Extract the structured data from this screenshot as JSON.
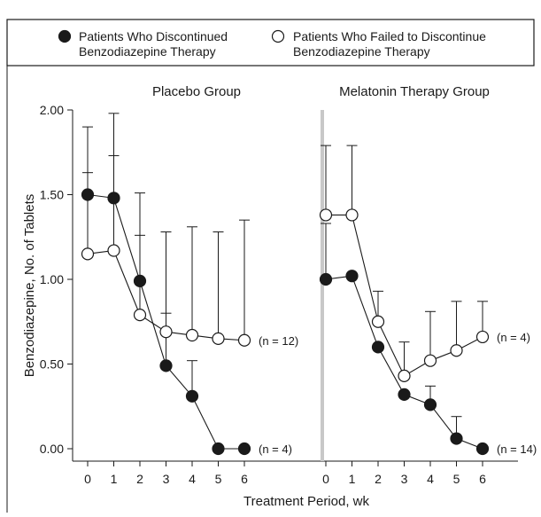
{
  "chart_data": {
    "type": "line",
    "legend": {
      "position": "top",
      "items": [
        {
          "label_line1": "Patients Who Discontinued",
          "label_line2": "Benzodiazepine Therapy",
          "marker": "filled-circle"
        },
        {
          "label_line1": "Patients Who Failed to Discontinue",
          "label_line2": "Benzodiazepine Therapy",
          "marker": "open-circle"
        }
      ]
    },
    "ylabel": "Benzodiazepine, No. of Tablets",
    "xlabel": "Treatment Period, wk",
    "ylim": [
      0,
      2
    ],
    "yticks": [
      "0.00",
      "0.50",
      "1.00",
      "1.50",
      "2.00"
    ],
    "ytick_values": [
      0,
      0.5,
      1,
      1.5,
      2
    ],
    "x": [
      0,
      1,
      2,
      3,
      4,
      5,
      6
    ],
    "xtick_labels": [
      "0",
      "1",
      "2",
      "3",
      "4",
      "5",
      "6"
    ],
    "panels": [
      {
        "title": "Placebo Group",
        "series": [
          {
            "name": "Patients Who Discontinued Benzodiazepine Therapy",
            "marker": "filled",
            "values": [
              1.5,
              1.48,
              0.99,
              0.49,
              0.31,
              0.0,
              0.0
            ],
            "upper_error": [
              1.9,
              1.98,
              1.51,
              0.8,
              0.52,
              null,
              null
            ],
            "end_label": "(n = 4)"
          },
          {
            "name": "Patients Who Failed to Discontinue Benzodiazepine Therapy",
            "marker": "open",
            "values": [
              1.15,
              1.17,
              0.79,
              0.69,
              0.67,
              0.65,
              0.64
            ],
            "upper_error": [
              1.63,
              1.73,
              1.26,
              1.28,
              1.31,
              1.28,
              1.35
            ],
            "end_label": "(n = 12)"
          }
        ]
      },
      {
        "title": "Melatonin Therapy Group",
        "series": [
          {
            "name": "Patients Who Discontinued Benzodiazepine Therapy",
            "marker": "filled",
            "values": [
              1.0,
              1.02,
              0.6,
              0.32,
              0.26,
              0.06,
              0.0
            ],
            "upper_error": [
              1.33,
              null,
              null,
              null,
              0.37,
              0.19,
              null
            ],
            "end_label": "(n = 14)"
          },
          {
            "name": "Patients Who Failed to Discontinue Benzodiazepine Therapy",
            "marker": "open",
            "values": [
              1.38,
              1.38,
              0.75,
              0.43,
              0.52,
              0.58,
              0.66
            ],
            "upper_error": [
              1.79,
              1.79,
              0.93,
              0.63,
              0.81,
              0.87,
              0.87
            ],
            "end_label": "(n = 4)"
          }
        ]
      }
    ],
    "grid": false
  }
}
